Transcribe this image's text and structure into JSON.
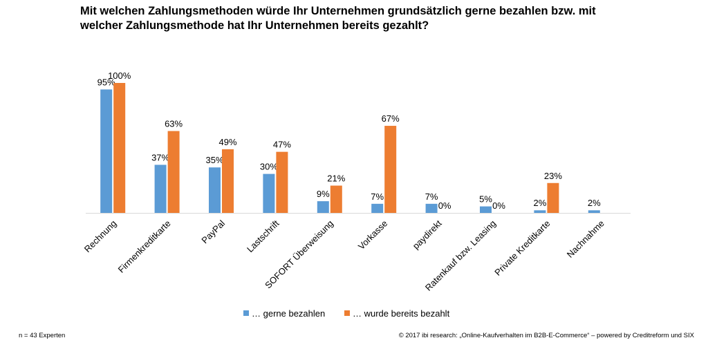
{
  "title": "Mit welchen Zahlungsmethoden würde Ihr Unternehmen grundsätzlich gerne bezahlen bzw. mit welcher Zahlungsmethode hat Ihr Unternehmen bereits gezahlt?",
  "footnote_left": "n = 43 Experten",
  "footnote_right": "© 2017 ibi research: „Online-Kaufverhalten im B2B-E-Commerce“ – powered by Creditreform und SIX",
  "chart_data": {
    "type": "bar",
    "title": "Mit welchen Zahlungsmethoden würde Ihr Unternehmen grundsätzlich gerne bezahlen bzw. mit welcher Zahlungsmethode hat Ihr Unternehmen bereits gezahlt?",
    "categories": [
      "Rechnung",
      "Firmenkreditkarte",
      "PayPal",
      "Lastschrift",
      "SOFORT Überweisung",
      "Vorkasse",
      "paydirekt",
      "Ratenkauf bzw. Leasing",
      "Private Kreditkarte",
      "Nachnahme"
    ],
    "series": [
      {
        "name": "… gerne bezahlen",
        "color": "#5B9BD5",
        "values": [
          95,
          37,
          35,
          30,
          9,
          7,
          7,
          5,
          2,
          2
        ],
        "labels": [
          "95%",
          "37%",
          "35%",
          "30%",
          "9%",
          "7%",
          "7%",
          "5%",
          "2%",
          "2%"
        ]
      },
      {
        "name": "… wurde bereits bezahlt",
        "color": "#ED7D31",
        "values": [
          100,
          63,
          49,
          47,
          21,
          67,
          0,
          0,
          23,
          null
        ],
        "labels": [
          "100%",
          "63%",
          "49%",
          "47%",
          "21%",
          "67%",
          "0%",
          "0%",
          "23%",
          null
        ]
      }
    ],
    "ylim": [
      0,
      100
    ],
    "grid": false,
    "legend_position": "bottom",
    "xlabel": "",
    "ylabel": ""
  }
}
